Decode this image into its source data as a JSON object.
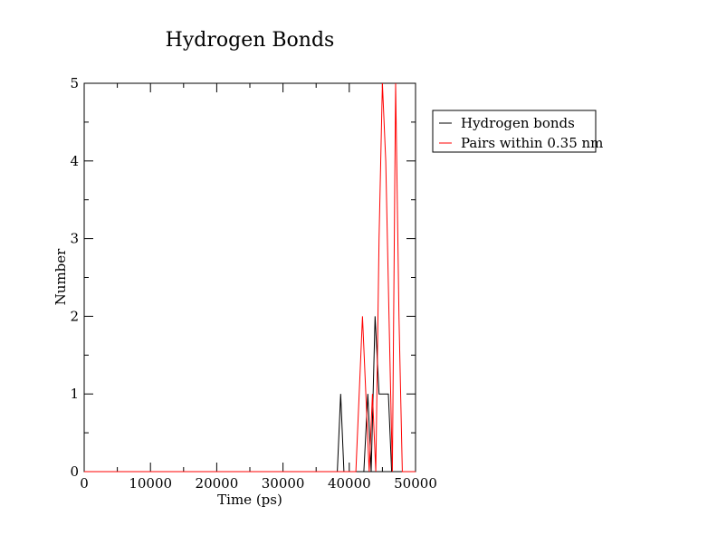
{
  "chart_data": {
    "type": "line",
    "title": "Hydrogen Bonds",
    "xlabel": "Time (ps)",
    "ylabel": "Number",
    "xlim": [
      0,
      50000
    ],
    "ylim": [
      0,
      5
    ],
    "xticks": [
      0,
      10000,
      20000,
      30000,
      40000,
      50000
    ],
    "yticks": [
      0,
      1,
      2,
      3,
      4,
      5
    ],
    "x_tick_labels": [
      "0",
      "10000",
      "20000",
      "30000",
      "40000",
      "50000"
    ],
    "y_tick_labels": [
      "0",
      "1",
      "2",
      "3",
      "4",
      "5"
    ],
    "grid": false,
    "legend_position": "right-outside-top",
    "series": [
      {
        "name": "Hydrogen bonds",
        "color": "#000000",
        "points": [
          [
            0,
            0
          ],
          [
            38200,
            0
          ],
          [
            38700,
            1
          ],
          [
            39200,
            0
          ],
          [
            39600,
            0
          ],
          [
            40000,
            0
          ],
          [
            42200,
            0
          ],
          [
            42800,
            1
          ],
          [
            43300,
            0
          ],
          [
            43900,
            2
          ],
          [
            44500,
            1
          ],
          [
            45000,
            1
          ],
          [
            45400,
            1
          ],
          [
            45900,
            1
          ],
          [
            46400,
            0
          ],
          [
            50000,
            0
          ]
        ]
      },
      {
        "name": "Pairs within 0.35 nm",
        "color": "#ff0000",
        "points": [
          [
            0,
            0
          ],
          [
            41000,
            0
          ],
          [
            42000,
            2
          ],
          [
            42500,
            1
          ],
          [
            43000,
            0
          ],
          [
            43500,
            1
          ],
          [
            44000,
            0
          ],
          [
            44500,
            3
          ],
          [
            45000,
            5
          ],
          [
            45500,
            4
          ],
          [
            46000,
            2
          ],
          [
            46500,
            0
          ],
          [
            47000,
            5
          ],
          [
            47500,
            2
          ],
          [
            48000,
            0
          ],
          [
            50000,
            0
          ]
        ]
      }
    ]
  }
}
